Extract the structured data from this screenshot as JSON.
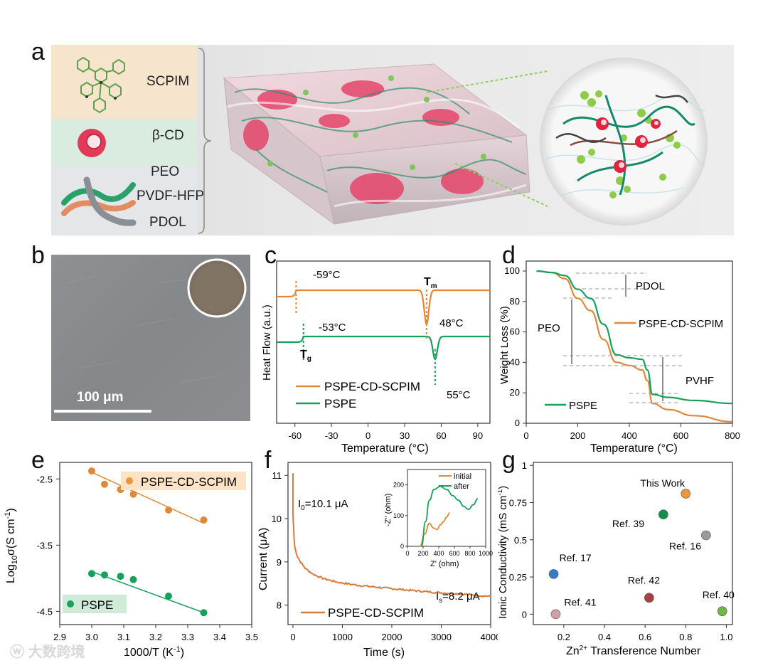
{
  "panels": {
    "a": "a",
    "b": "b",
    "c": "c",
    "d": "d",
    "e": "e",
    "f": "f",
    "g": "g"
  },
  "panel_a": {
    "components": [
      "SCPIM",
      "β-CD",
      "PEO",
      "PVDF-HFP",
      "PDOL"
    ]
  },
  "panel_b": {
    "scale_bar": "100 μm"
  },
  "watermark": "大数跨境",
  "colors": {
    "orange": "#e0883a",
    "green": "#17a05a",
    "cd_pink": "#e23a58",
    "sem_gray": "#8b8d8f"
  },
  "chart_data": [
    {
      "id": "c",
      "type": "line",
      "xlabel": "Temperature (°C)",
      "ylabel": "Heat Flow (a.u.)",
      "xlim": [
        -75,
        100
      ],
      "xticks": [
        "-60",
        "-30",
        "0",
        "30",
        "60",
        "90"
      ],
      "series": [
        {
          "name": "PSPE-CD-SCPIM",
          "color": "#e0883a",
          "Tg": -59,
          "Tm": 48
        },
        {
          "name": "PSPE",
          "color": "#17a05a",
          "Tg": -53,
          "Tm": 55
        }
      ],
      "annotations": {
        "tg_orange": "-59°C",
        "tg_green": "-53°C",
        "tm_orange": "48°C",
        "tm_green": "55°C",
        "tm_label": "T",
        "tm_sub": "m",
        "tg_label": "T",
        "tg_sub": "g"
      },
      "legend": [
        "PSPE-CD-SCPIM",
        "PSPE"
      ]
    },
    {
      "id": "d",
      "type": "line",
      "xlabel": "Temperature (°C)",
      "ylabel": "Weight Loss (%)",
      "xlim": [
        0,
        800
      ],
      "ylim": [
        0,
        100
      ],
      "xticks": [
        "0",
        "200",
        "400",
        "600",
        "800"
      ],
      "yticks": [
        "0",
        "20",
        "40",
        "60",
        "80",
        "100"
      ],
      "series": [
        {
          "name": "PSPE-CD-SCPIM",
          "color": "#e0883a",
          "x": [
            40,
            100,
            150,
            200,
            250,
            300,
            350,
            400,
            450,
            470,
            490,
            550,
            650,
            800
          ],
          "y": [
            100,
            99,
            95,
            82,
            74,
            55,
            40,
            38,
            35,
            28,
            13,
            9,
            5,
            1
          ]
        },
        {
          "name": "PSPE",
          "color": "#17a05a",
          "x": [
            40,
            100,
            150,
            200,
            250,
            300,
            350,
            400,
            450,
            470,
            490,
            550,
            650,
            800
          ],
          "y": [
            100,
            99,
            97,
            88,
            82,
            65,
            45,
            43,
            42,
            35,
            19,
            17,
            15,
            13
          ]
        }
      ],
      "annotations": {
        "pdol": "PDOL",
        "peo": "PEO",
        "pvhf": "PVHF"
      },
      "legend": [
        "PSPE-CD-SCPIM",
        "PSPE"
      ]
    },
    {
      "id": "e",
      "type": "scatter",
      "xlabel": "1000/T (K",
      "xlabel_sup": "-1",
      "xlabel_end": ")",
      "ylabel": "Log",
      "ylabel_sub": "10",
      "ylabel_mid": "σ(S cm",
      "ylabel_sup": "-1",
      "ylabel_end": ")",
      "xlim": [
        2.9,
        3.5
      ],
      "ylim": [
        -4.7,
        -2.25
      ],
      "xticks": [
        "2.9",
        "3.0",
        "3.1",
        "3.2",
        "3.3",
        "3.4",
        "3.5"
      ],
      "yticks": [
        "-2.5",
        "-3.5",
        "-4.5"
      ],
      "series": [
        {
          "name": "PSPE-CD-SCPIM",
          "color": "#e0883a",
          "x": [
            3.0,
            3.04,
            3.09,
            3.13,
            3.24,
            3.35
          ],
          "y": [
            -2.38,
            -2.58,
            -2.66,
            -2.73,
            -2.97,
            -3.12
          ],
          "fit": [
            [
              3.0,
              -2.4
            ],
            [
              3.35,
              -3.17
            ]
          ]
        },
        {
          "name": "PSPE",
          "color": "#17a05a",
          "x": [
            3.0,
            3.04,
            3.09,
            3.13,
            3.24,
            3.35
          ],
          "y": [
            -3.93,
            -3.95,
            -3.97,
            -4.02,
            -4.27,
            -4.52
          ],
          "fit": [
            [
              3.0,
              -3.9
            ],
            [
              3.35,
              -4.52
            ]
          ]
        }
      ],
      "legend": [
        "PSPE-CD-SCPIM",
        "PSPE"
      ]
    },
    {
      "id": "f",
      "type": "line",
      "xlabel": "Time (s)",
      "ylabel": "Current (μA)",
      "xlim": [
        -100,
        4000
      ],
      "ylim": [
        7.55,
        11.3
      ],
      "xticks": [
        "0",
        "1000",
        "2000",
        "3000",
        "4000"
      ],
      "yticks": [
        "8",
        "9",
        "10",
        "11"
      ],
      "series": [
        {
          "name": "PSPE-CD-SCPIM",
          "color": "#d97a3a",
          "x": [
            0,
            30,
            80,
            150,
            250,
            400,
            600,
            900,
            1300,
            2000,
            2800,
            3500,
            4000
          ],
          "y": [
            10.1,
            9.4,
            9.15,
            9.0,
            8.85,
            8.72,
            8.62,
            8.53,
            8.46,
            8.38,
            8.3,
            8.25,
            8.2
          ]
        }
      ],
      "annotations": {
        "i0_label": "I",
        "i0_sub": "0",
        "i0_value": "=10.1 μA",
        "is_label": "I",
        "is_sub": "s",
        "is_value": "=8.2 μA"
      },
      "legend": [
        "PSPE-CD-SCPIM"
      ],
      "inset": {
        "xlabel": "Z' (ohm)",
        "ylabel": "-Z'' (ohm)",
        "xticks": [
          "0",
          "200",
          "400",
          "600",
          "800",
          "1000"
        ],
        "yticks": [
          "0",
          "100",
          "200"
        ],
        "xlim": [
          0,
          1000
        ],
        "ylim": [
          0,
          250
        ],
        "series": [
          {
            "name": "initial",
            "color": "#e0883a",
            "x": [
              160,
              220,
              280,
              330,
              380,
              420,
              460,
              500,
              540
            ],
            "y": [
              0,
              40,
              75,
              60,
              55,
              70,
              80,
              95,
              110
            ]
          },
          {
            "name": "after",
            "color": "#17a05a",
            "x": [
              180,
              230,
              280,
              340,
              420,
              500,
              580,
              650,
              720,
              780,
              840,
              900
            ],
            "y": [
              0,
              80,
              150,
              185,
              195,
              185,
              165,
              150,
              130,
              120,
              135,
              155
            ]
          }
        ],
        "legend": [
          "initial",
          "after"
        ]
      }
    },
    {
      "id": "g",
      "type": "scatter",
      "xlabel": "Zn",
      "xlabel_sup": "2+",
      "xlabel_end": " Transference Number",
      "ylabel": "Ionic Conductivity (mS cm",
      "ylabel_sup": "-1",
      "ylabel_end": ")",
      "xlim": [
        0.05,
        1.03
      ],
      "ylim": [
        -0.07,
        1.02
      ],
      "xticks": [
        "0.2",
        "0.4",
        "0.6",
        "0.8",
        "1.0"
      ],
      "yticks": [
        "0",
        "0.25",
        "0.5",
        "0.75",
        "1"
      ],
      "points": [
        {
          "label": "This Work",
          "x": 0.8,
          "y": 0.81,
          "color": "#e8973e"
        },
        {
          "label": "Ref. 39",
          "x": 0.69,
          "y": 0.67,
          "color": "#10904a"
        },
        {
          "label": "Ref. 16",
          "x": 0.9,
          "y": 0.53,
          "color": "#9a9a9a"
        },
        {
          "label": "Ref. 17",
          "x": 0.15,
          "y": 0.27,
          "color": "#3a78c8"
        },
        {
          "label": "Ref. 42",
          "x": 0.62,
          "y": 0.11,
          "color": "#a84040"
        },
        {
          "label": "Ref. 40",
          "x": 0.98,
          "y": 0.02,
          "color": "#72b44c"
        },
        {
          "label": "Ref. 41",
          "x": 0.16,
          "y": 0.0,
          "color": "#d0a0a8"
        }
      ]
    }
  ]
}
